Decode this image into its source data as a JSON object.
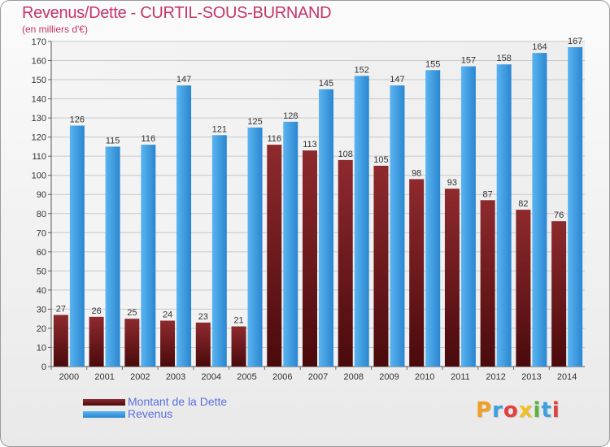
{
  "title": "Revenus/Dette - CURTIL-SOUS-BURNAND",
  "subtitle": "(en milliers d'€)",
  "logo": {
    "text": "Proxiti",
    "colors": [
      "#f0a020",
      "#3aa0e0",
      "#e04040",
      "#f0c020",
      "#60b040",
      "#3aa0e0",
      "#e04040"
    ]
  },
  "chart_data": {
    "type": "bar",
    "categories": [
      "2000",
      "2001",
      "2002",
      "2003",
      "2004",
      "2005",
      "2006",
      "2007",
      "2008",
      "2009",
      "2010",
      "2011",
      "2012",
      "2013",
      "2014"
    ],
    "series": [
      {
        "name": "Montant de la Dette",
        "color": "#7a1f24",
        "values": [
          27,
          26,
          25,
          24,
          23,
          21,
          116,
          113,
          108,
          105,
          98,
          93,
          87,
          82,
          76
        ]
      },
      {
        "name": "Revenus",
        "color": "#3a9ae0",
        "values": [
          126,
          115,
          116,
          147,
          121,
          125,
          128,
          145,
          152,
          147,
          155,
          157,
          158,
          164,
          167
        ]
      }
    ],
    "ylim": [
      0,
      170
    ],
    "yticks": [
      0,
      10,
      20,
      30,
      40,
      50,
      60,
      70,
      80,
      90,
      100,
      110,
      120,
      130,
      140,
      150,
      160,
      170
    ],
    "grid": true,
    "legend_position": "bottom-left"
  }
}
